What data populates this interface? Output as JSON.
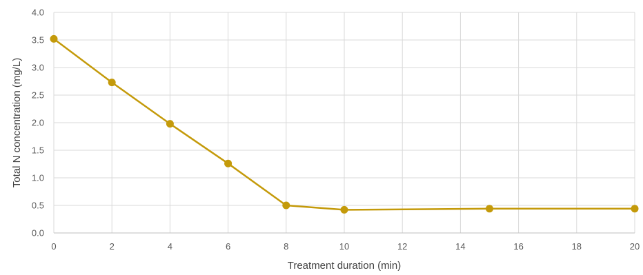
{
  "chart_data": {
    "type": "line",
    "xlabel": "Treatment duration (min)",
    "ylabel": "Total N concentration (mg/L)",
    "xlim": [
      0,
      20
    ],
    "ylim": [
      0,
      4
    ],
    "x_ticks": [
      0,
      2,
      4,
      6,
      8,
      10,
      12,
      14,
      16,
      18,
      20
    ],
    "y_ticks": [
      0,
      0.5,
      1,
      1.5,
      2,
      2.5,
      3,
      3.5,
      4
    ],
    "x_tick_labels": [
      "0",
      "2",
      "4",
      "6",
      "8",
      "10",
      "12",
      "14",
      "16",
      "18",
      "20"
    ],
    "y_tick_labels": [
      "0.0",
      "0.5",
      "1.0",
      "1.5",
      "2.0",
      "2.5",
      "3.0",
      "3.5",
      "4.0"
    ],
    "grid": "vertical and horizontal",
    "legend": "none",
    "series": [
      {
        "color": "#c49a0a",
        "x": [
          0,
          2,
          4,
          6,
          8,
          10,
          15,
          20
        ],
        "y": [
          3.52,
          2.73,
          1.98,
          1.26,
          0.5,
          0.42,
          0.44,
          0.44
        ]
      }
    ]
  }
}
